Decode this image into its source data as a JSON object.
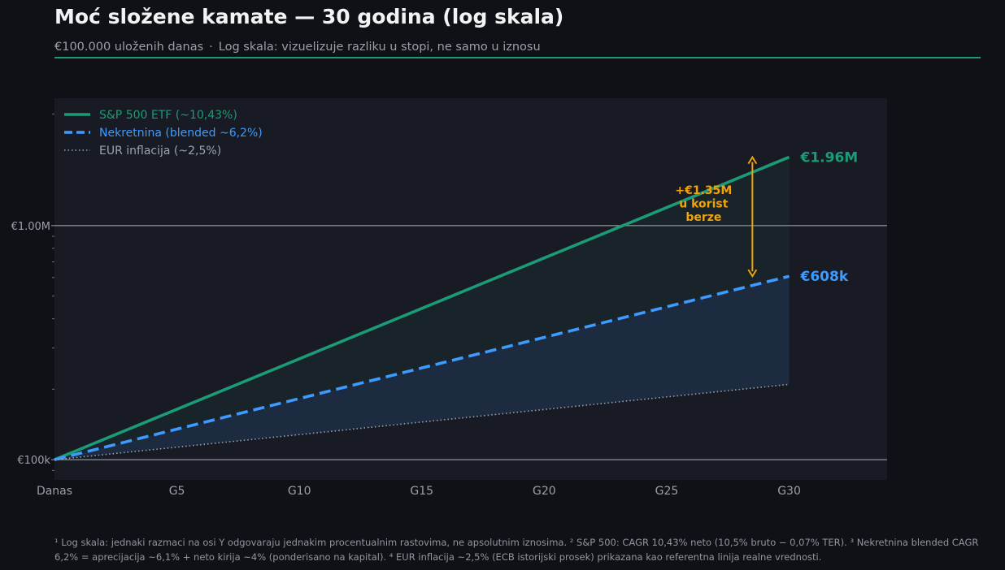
{
  "header": {
    "title": "Moć složene kamate — 30 godina (log skala)",
    "subtitle_parts": [
      "€100.000 uloženih danas",
      "·",
      "Log skala: vizuelizuje razliku u stopi, ne samo u iznosu"
    ]
  },
  "colors": {
    "accent": "#1c9b78",
    "sp500": "#1c9b78",
    "real_estate": "#3d9bff",
    "inflation": "#9ca3ad",
    "gap": "#f0a30a"
  },
  "chart_data": {
    "type": "line",
    "y_scale": "log",
    "x_ticks": [
      {
        "x": 0,
        "label": "Danas"
      },
      {
        "x": 5,
        "label": "G5"
      },
      {
        "x": 10,
        "label": "G10"
      },
      {
        "x": 15,
        "label": "G15"
      },
      {
        "x": 20,
        "label": "G20"
      },
      {
        "x": 25,
        "label": "G25"
      },
      {
        "x": 30,
        "label": "G30"
      }
    ],
    "y_ticks": [
      {
        "y": 100000,
        "label": "€100k"
      },
      {
        "y": 1000000,
        "label": "€1.00M"
      }
    ],
    "xlim": [
      0,
      34
    ],
    "ylim": [
      82000,
      3500000
    ],
    "grid": "horizontal-major",
    "legend_position": "top-left",
    "series": [
      {
        "name": "S&P 500 ETF (~10,43%)",
        "rate": 0.1043,
        "start": 100000,
        "years": 30,
        "style": "solid",
        "end_label": "€1.96M",
        "end_value": 1960000
      },
      {
        "name": "Nekretnina (blended ~6,2%)",
        "rate": 0.062,
        "start": 100000,
        "years": 30,
        "style": "dashed",
        "end_label": "€608k",
        "end_value": 608000
      },
      {
        "name": "EUR inflacija (~2,5%)",
        "rate": 0.025,
        "start": 100000,
        "years": 30,
        "style": "dotted"
      }
    ],
    "annotation": {
      "lines": [
        "+€1.35M",
        "u korist",
        "berze"
      ],
      "x": 28.5,
      "y_from": 1960000,
      "y_to": 608000
    }
  },
  "footnote": "¹ Log skala: jednaki razmaci na osi Y odgovaraju jednakim procentualnim rastovima, ne apsolutnim iznosima. ² S&P 500: CAGR 10,43% neto (10,5% bruto − 0,07% TER). ³ Nekretnina blended CAGR 6,2% = aprecijacija ~6,1% + neto kirija ~4% (ponderisano na kapital). ⁴ EUR inflacija ~2,5% (ECB istorijski prosek) prikazana kao referentna linija realne vrednosti."
}
